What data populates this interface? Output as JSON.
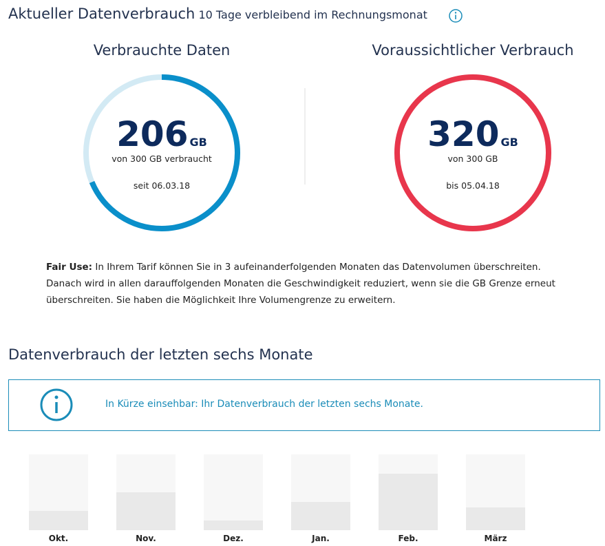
{
  "header": {
    "title": "Aktueller Datenverbrauch",
    "subtitle": "10 Tage verbleibend im Rechnungsmonat"
  },
  "gauges": [
    {
      "title": "Verbrauchte Daten",
      "value": 206,
      "max": 300,
      "unit": "GB",
      "caption": "von 300 GB verbraucht",
      "date": "seit 06.03.18",
      "color": "#0a8fca",
      "track_color": "#d3eaf4"
    },
    {
      "title": "Voraussichtlicher Verbrauch",
      "value": 320,
      "max": 300,
      "unit": "GB",
      "caption": "von 300 GB",
      "date": "bis 05.04.18",
      "color": "#e8364c",
      "track_color": "#f8d5da"
    }
  ],
  "fair_use": {
    "label": "Fair Use:",
    "text": "In Ihrem Tarif können Sie in 3 aufeinanderfolgenden Monaten das Datenvolumen überschreiten. Danach wird in allen darauffolgenden Monaten die Geschwindigkeit reduziert, wenn sie die GB Grenze erneut überschreiten. Sie haben die Möglichkeit Ihre Volumengrenze zu erweitern."
  },
  "chart_data": {
    "type": "bar",
    "title": "Datenverbrauch der letzten sechs Monate",
    "notice": "In Kürze einsehbar: Ihr Datenverbrauch der letzten sechs Monate.",
    "categories": [
      "Okt.",
      "Nov.",
      "Dez.",
      "Jan.",
      "Feb.",
      "März"
    ],
    "values": [
      28,
      55,
      14,
      41,
      82,
      33
    ],
    "ylim": [
      0,
      110
    ],
    "color": "#e9e9e9",
    "track_color": "#f7f7f7"
  }
}
